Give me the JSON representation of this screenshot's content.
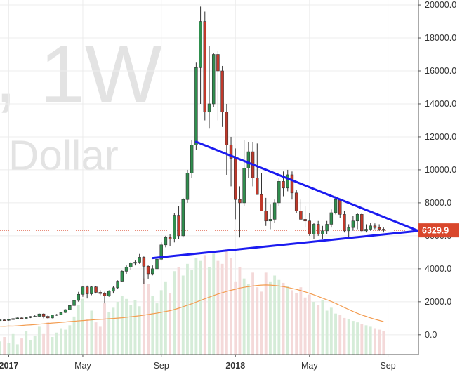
{
  "watermark": {
    "interval": ", 1W",
    "unit": "Dollar"
  },
  "colors": {
    "up": "#2f8f4e",
    "down": "#c0392b",
    "up_volume": "#d5ecd8",
    "down_volume": "#f4d9d9",
    "moving_average": "#f39c50",
    "trendline": "#1b1bf0",
    "last_price": "#d9472c",
    "grid": "#ececec",
    "axis": "#555555"
  },
  "last_price": {
    "label": "6329.9",
    "value": 6329.9
  },
  "chart_data": {
    "type": "candlestick",
    "interval": "1W",
    "unit": "Dollar",
    "x_axis_labels": [
      {
        "text": "2017",
        "bold": true,
        "week": 0
      },
      {
        "text": "May",
        "bold": false,
        "week": 17
      },
      {
        "text": "Sep",
        "bold": false,
        "week": 35
      },
      {
        "text": "2018",
        "bold": true,
        "week": 52
      },
      {
        "text": "May",
        "bold": false,
        "week": 69
      },
      {
        "text": "Sep",
        "bold": false,
        "week": 87
      }
    ],
    "y_ticks": [
      "0.0",
      "2000.0",
      "4000.0",
      "6000.0",
      "8000.0",
      "10000.0",
      "12000.0",
      "14000.0",
      "16000.0",
      "18000.0",
      "20000.0"
    ],
    "y_tick_values": [
      0,
      2000,
      4000,
      6000,
      8000,
      10000,
      12000,
      14000,
      16000,
      18000,
      20000
    ],
    "y_range": [
      -1200,
      20300
    ],
    "x_range": [
      -2,
      94
    ],
    "week_start": -2,
    "candles": [
      [
        880,
        960,
        840,
        900
      ],
      [
        900,
        940,
        860,
        880
      ],
      [
        880,
        960,
        850,
        920
      ],
      [
        920,
        1000,
        900,
        980
      ],
      [
        980,
        1050,
        950,
        1020
      ],
      [
        1020,
        1060,
        960,
        990
      ],
      [
        990,
        1070,
        980,
        1040
      ],
      [
        1040,
        1130,
        1010,
        1110
      ],
      [
        1110,
        1180,
        1060,
        1120
      ],
      [
        1120,
        1290,
        1100,
        1260
      ],
      [
        1260,
        1300,
        1000,
        1120
      ],
      [
        1120,
        1180,
        950,
        1020
      ],
      [
        1020,
        1210,
        1000,
        1190
      ],
      [
        1190,
        1260,
        1150,
        1220
      ],
      [
        1220,
        1380,
        1200,
        1350
      ],
      [
        1350,
        1550,
        1320,
        1520
      ],
      [
        1520,
        1800,
        1500,
        1770
      ],
      [
        1770,
        2100,
        1700,
        2080
      ],
      [
        2080,
        2600,
        2000,
        2450
      ],
      [
        2450,
        2950,
        2300,
        2900
      ],
      [
        2900,
        2980,
        2200,
        2480
      ],
      [
        2480,
        2950,
        2400,
        2900
      ],
      [
        2900,
        2970,
        2500,
        2570
      ],
      [
        2570,
        2700,
        2400,
        2500
      ],
      [
        2500,
        2600,
        1900,
        2350
      ],
      [
        2350,
        2700,
        2300,
        2640
      ],
      [
        2640,
        2950,
        2500,
        2850
      ],
      [
        2850,
        3300,
        2800,
        3250
      ],
      [
        3250,
        3900,
        3200,
        3850
      ],
      [
        3850,
        4200,
        3700,
        4100
      ],
      [
        4100,
        4400,
        3950,
        4340
      ],
      [
        4340,
        4500,
        4200,
        4400
      ],
      [
        4400,
        4900,
        4300,
        4700
      ],
      [
        4700,
        4750,
        3100,
        4150
      ],
      [
        4150,
        4200,
        3400,
        3700
      ],
      [
        3700,
        4200,
        3600,
        4000
      ],
      [
        4000,
        4650,
        3900,
        4580
      ],
      [
        4580,
        5600,
        4500,
        5450
      ],
      [
        5450,
        6000,
        5300,
        5900
      ],
      [
        5900,
        6100,
        5400,
        5800
      ],
      [
        5800,
        7400,
        5600,
        7250
      ],
      [
        7250,
        7800,
        5800,
        6000
      ],
      [
        6000,
        8300,
        5900,
        8200
      ],
      [
        8200,
        10000,
        8000,
        9800
      ],
      [
        9800,
        11800,
        9500,
        11500
      ],
      [
        11500,
        16500,
        11200,
        16200
      ],
      [
        16200,
        19900,
        14000,
        19000
      ],
      [
        19000,
        19600,
        13000,
        13500
      ],
      [
        13500,
        17500,
        12500,
        14000
      ],
      [
        14000,
        17100,
        13800,
        17000
      ],
      [
        17000,
        17200,
        13000,
        16000
      ],
      [
        16000,
        16300,
        12600,
        13500
      ],
      [
        13500,
        14000,
        9700,
        11500
      ],
      [
        11500,
        12000,
        9000,
        10700
      ],
      [
        10700,
        11300,
        7000,
        8200
      ],
      [
        8200,
        9000,
        5900,
        8000
      ],
      [
        8000,
        11800,
        7800,
        10100
      ],
      [
        10100,
        11700,
        9500,
        11100
      ],
      [
        11100,
        11700,
        9000,
        9500
      ],
      [
        9500,
        11600,
        8700,
        8500
      ],
      [
        8500,
        9800,
        7700,
        7500
      ],
      [
        7500,
        8300,
        6600,
        6900
      ],
      [
        6900,
        7900,
        6400,
        7000
      ],
      [
        7000,
        8200,
        6800,
        8000
      ],
      [
        8000,
        9500,
        7800,
        9300
      ],
      [
        9300,
        9900,
        8400,
        8900
      ],
      [
        8900,
        10000,
        8700,
        9700
      ],
      [
        9700,
        9900,
        8200,
        8600
      ],
      [
        8600,
        8800,
        7400,
        7500
      ],
      [
        7500,
        8200,
        7200,
        7000
      ],
      [
        7000,
        7800,
        6500,
        6900
      ],
      [
        6900,
        7400,
        6000,
        6100
      ],
      [
        6100,
        6800,
        5800,
        6700
      ],
      [
        6700,
        6900,
        6000,
        6100
      ],
      [
        6100,
        6600,
        5800,
        6300
      ],
      [
        6300,
        6900,
        6100,
        6700
      ],
      [
        6700,
        7600,
        6500,
        7400
      ],
      [
        7400,
        8400,
        7300,
        8200
      ],
      [
        8200,
        8200,
        7100,
        7300
      ],
      [
        7300,
        7500,
        6200,
        6300
      ],
      [
        6300,
        6700,
        5900,
        6500
      ],
      [
        6500,
        7200,
        6300,
        6900
      ],
      [
        6900,
        7400,
        6400,
        7300
      ],
      [
        7300,
        7400,
        6200,
        6300
      ],
      [
        6300,
        6700,
        6200,
        6400
      ],
      [
        6400,
        6800,
        6300,
        6600
      ],
      [
        6600,
        6750,
        6400,
        6500
      ],
      [
        6500,
        6700,
        6300,
        6400
      ],
      [
        6400,
        6500,
        6200,
        6330
      ]
    ],
    "volumes": [
      45,
      60,
      40,
      70,
      35,
      55,
      80,
      50,
      65,
      95,
      70,
      110,
      60,
      75,
      90,
      85,
      100,
      130,
      170,
      190,
      120,
      150,
      110,
      95,
      175,
      145,
      160,
      180,
      200,
      190,
      170,
      185,
      165,
      260,
      240,
      200,
      175,
      220,
      250,
      210,
      285,
      300,
      270,
      310,
      290,
      330,
      320,
      340,
      300,
      345,
      320,
      310,
      360,
      330,
      250,
      300,
      260,
      240,
      280,
      230,
      215,
      280,
      250,
      270,
      255,
      245,
      235,
      220,
      210,
      230,
      195,
      205,
      180,
      170,
      185,
      150,
      160,
      140,
      135,
      125,
      120,
      115,
      110,
      105,
      100,
      95,
      90,
      85,
      80
    ],
    "moving_average": [
      520,
      515,
      530,
      525,
      540,
      560,
      585,
      600,
      620,
      645,
      665,
      690,
      710,
      730,
      750,
      775,
      800,
      820,
      840,
      860,
      880,
      900,
      920,
      935,
      950,
      970,
      990,
      1010,
      1030,
      1060,
      1090,
      1120,
      1150,
      1190,
      1230,
      1270,
      1310,
      1360,
      1410,
      1460,
      1530,
      1610,
      1700,
      1790,
      1880,
      1980,
      2080,
      2180,
      2280,
      2380,
      2470,
      2550,
      2630,
      2700,
      2760,
      2830,
      2880,
      2920,
      2960,
      2990,
      3010,
      3020,
      3010,
      2990,
      2960,
      2920,
      2870,
      2810,
      2750,
      2680,
      2600,
      2510,
      2420,
      2320,
      2220,
      2120,
      2020,
      1900,
      1780,
      1650,
      1530,
      1410,
      1300,
      1200,
      1110,
      1020,
      940,
      870,
      800
    ],
    "trendlines": [
      {
        "name": "upper",
        "from": [
          43,
          11700
        ],
        "to": [
          94,
          6300
        ]
      },
      {
        "name": "lower",
        "from": [
          33,
          4650
        ],
        "to": [
          94,
          6300
        ]
      }
    ],
    "last_price": 6329.9
  }
}
